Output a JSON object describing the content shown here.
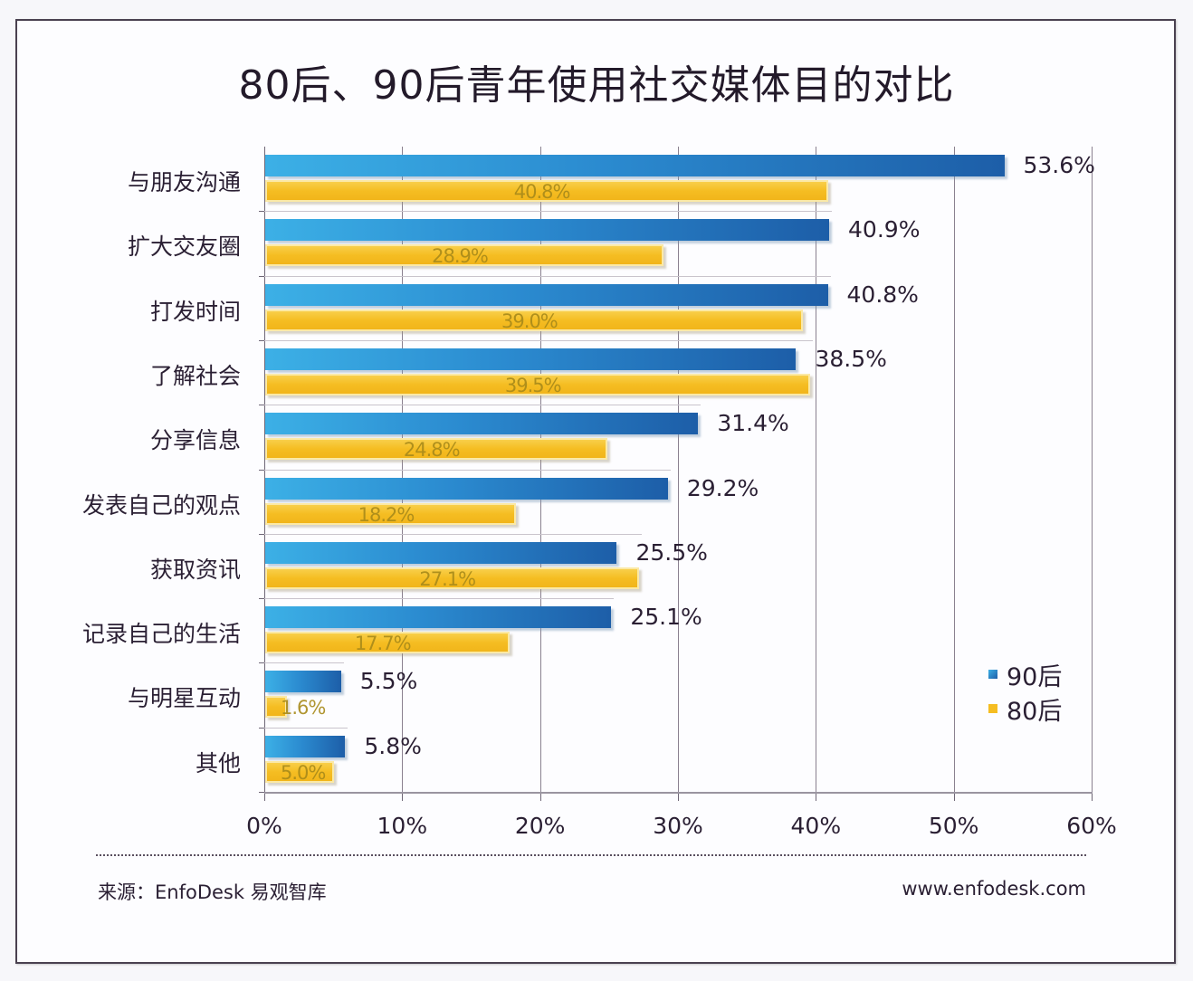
{
  "title": "80后、90后青年使用社交媒体目的对比",
  "legend": [
    {
      "label": "90后",
      "color": "#2b8bd0"
    },
    {
      "label": "80后",
      "color": "#f5bd22"
    }
  ],
  "x_ticks": [
    "0%",
    "10%",
    "20%",
    "30%",
    "40%",
    "50%",
    "60%"
  ],
  "categories": [
    {
      "label": "与朋友沟通",
      "v90": "53.6%",
      "v80": "40.8%"
    },
    {
      "label": "扩大交友圈",
      "v90": "40.9%",
      "v80": "28.9%"
    },
    {
      "label": "打发时间",
      "v90": "40.8%",
      "v80": "39.0%"
    },
    {
      "label": "了解社会",
      "v90": "38.5%",
      "v80": "39.5%"
    },
    {
      "label": "分享信息",
      "v90": "31.4%",
      "v80": "24.8%"
    },
    {
      "label": "发表自己的观点",
      "v90": "29.2%",
      "v80": "18.2%"
    },
    {
      "label": "获取资讯",
      "v90": "25.5%",
      "v80": "27.1%"
    },
    {
      "label": "记录自己的生活",
      "v90": "25.1%",
      "v80": "17.7%"
    },
    {
      "label": "与明星互动",
      "v90": "5.5%",
      "v80": "1.6%"
    },
    {
      "label": "其他",
      "v90": "5.8%",
      "v80": "5.0%"
    }
  ],
  "footer": {
    "source": "来源：EnfoDesk 易观智库",
    "url": "www.enfodesk.com"
  },
  "chart_data": {
    "type": "bar",
    "orientation": "horizontal",
    "title": "80后、90后青年使用社交媒体目的对比",
    "categories": [
      "与朋友沟通",
      "扩大交友圈",
      "打发时间",
      "了解社会",
      "分享信息",
      "发表自己的观点",
      "获取资讯",
      "记录自己的生活",
      "与明星互动",
      "其他"
    ],
    "series": [
      {
        "name": "90后",
        "color": "#2b8bd0",
        "values": [
          53.6,
          40.9,
          40.8,
          38.5,
          31.4,
          29.2,
          25.5,
          25.1,
          5.5,
          5.8
        ]
      },
      {
        "name": "80后",
        "color": "#f5bd22",
        "values": [
          40.8,
          28.9,
          39.0,
          39.5,
          24.8,
          18.2,
          27.1,
          17.7,
          1.6,
          5.0
        ]
      }
    ],
    "xlabel": "",
    "ylabel": "",
    "xlim": [
      0,
      60
    ],
    "x_ticks": [
      "0%",
      "10%",
      "20%",
      "30%",
      "40%",
      "50%",
      "60%"
    ],
    "unit": "%",
    "grid": "vertical",
    "legend_position": "lower right inside",
    "source": "来源：EnfoDesk 易观智库",
    "footer_url": "www.enfodesk.com"
  }
}
